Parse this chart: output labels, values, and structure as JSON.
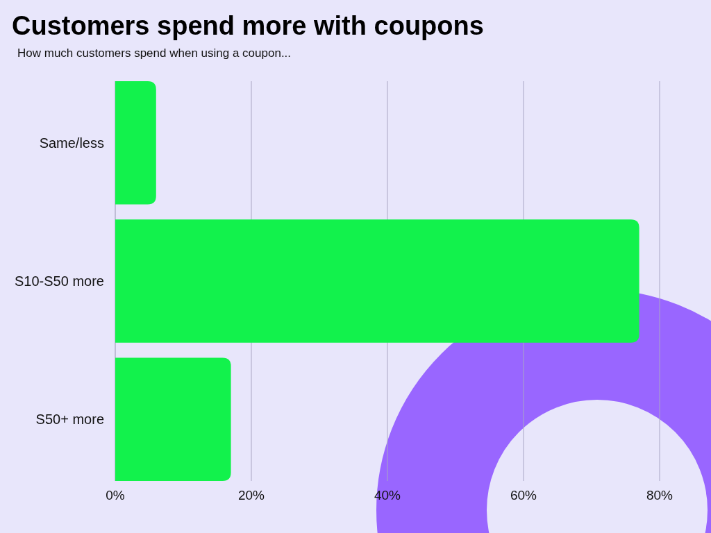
{
  "chart_data": {
    "type": "bar",
    "orientation": "horizontal",
    "title": "Customers spend more with coupons",
    "subtitle": "How much customers spend when using a coupon...",
    "categories": [
      "Same/less",
      "S10-S50 more",
      "S50+ more"
    ],
    "values": [
      6,
      77,
      17
    ],
    "color": "#12f24c",
    "xlim": [
      0,
      80
    ],
    "xticks": [
      {
        "value": 0,
        "label": "0%"
      },
      {
        "value": 20,
        "label": "20%"
      },
      {
        "value": 40,
        "label": "40%"
      },
      {
        "value": 60,
        "label": "60%"
      },
      {
        "value": 80,
        "label": "80%"
      }
    ],
    "grid": "x"
  }
}
